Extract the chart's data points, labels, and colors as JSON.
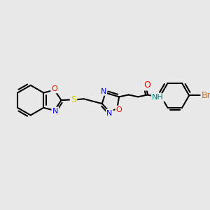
{
  "bg_color": "#e8e8e8",
  "bond_color": "#000000",
  "bond_lw": 1.5,
  "atom_colors": {
    "N": "#0000ff",
    "O": "#ff0000",
    "S": "#cccc00",
    "Br": "#b87333",
    "NH": "#008080",
    "C": "#000000"
  },
  "figsize": [
    3.0,
    3.0
  ],
  "dpi": 100
}
